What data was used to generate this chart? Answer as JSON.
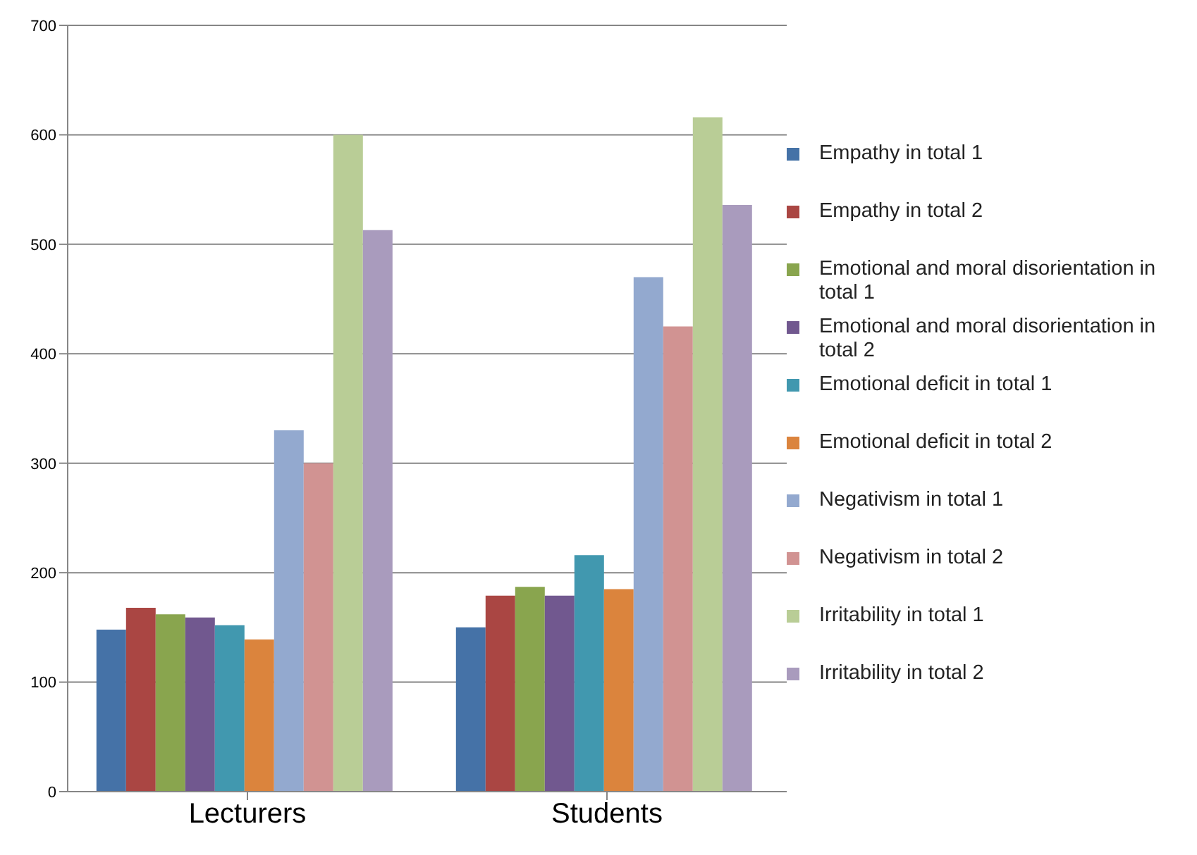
{
  "chart_data": {
    "type": "bar",
    "categories": [
      "Lecturers",
      "Students"
    ],
    "series": [
      {
        "name": "Empathy in total 1",
        "color": "#4572a7",
        "values": [
          148,
          150
        ]
      },
      {
        "name": "Empathy in total 2",
        "color": "#aa4643",
        "values": [
          168,
          179
        ]
      },
      {
        "name": "Emotional and moral disorientation in total 1",
        "color": "#89a54e",
        "values": [
          162,
          187
        ]
      },
      {
        "name": "Emotional and moral disorientation in total 2",
        "color": "#71588f",
        "values": [
          159,
          179
        ]
      },
      {
        "name": "Emotional deficit  in total 1",
        "color": "#4198af",
        "values": [
          152,
          216
        ]
      },
      {
        "name": "Emotional deficit  in total 2",
        "color": "#db843d",
        "values": [
          139,
          185
        ]
      },
      {
        "name": "Negativism in total 1",
        "color": "#93a9cf",
        "values": [
          330,
          470
        ]
      },
      {
        "name": "Negativism in total 2",
        "color": "#d19392",
        "values": [
          300,
          425
        ]
      },
      {
        "name": "Irritability in total 1",
        "color": "#b9cd96",
        "values": [
          600,
          616
        ]
      },
      {
        "name": "Irritability in total 2",
        "color": "#a99bbd",
        "values": [
          513,
          536
        ]
      }
    ],
    "ylim": [
      0,
      700
    ],
    "yticks": [
      0,
      100,
      200,
      300,
      400,
      500,
      600,
      700
    ],
    "grid": "y",
    "legend": "right"
  }
}
